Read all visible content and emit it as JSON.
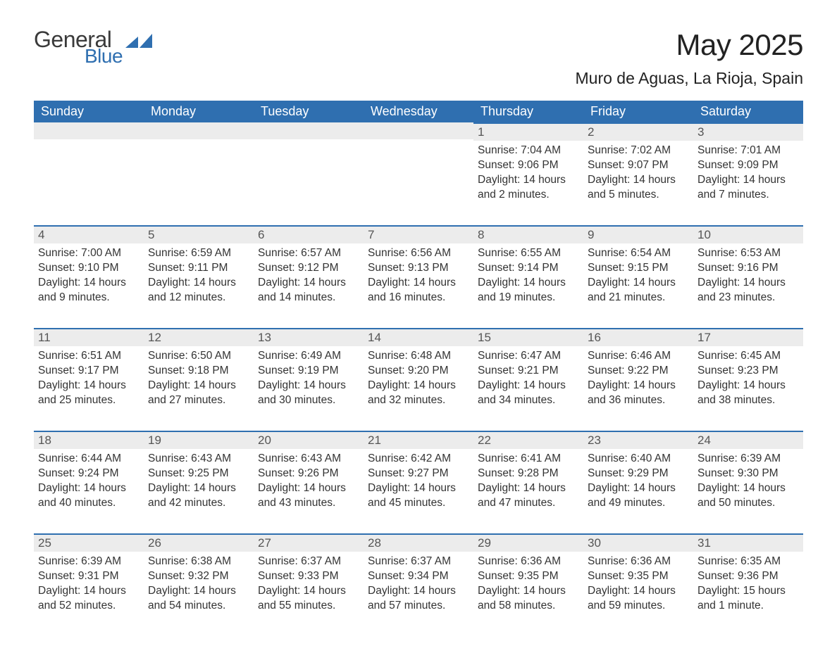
{
  "logo": {
    "text_general": "General",
    "text_blue": "Blue",
    "mark_color": "#2f6fb0"
  },
  "title": "May 2025",
  "location": "Muro de Aguas, La Rioja, Spain",
  "colors": {
    "header_bg": "#2f6fb0",
    "header_text": "#ffffff",
    "daynum_bg": "#ececec",
    "daynum_border": "#2f6fb0",
    "body_text": "#333333",
    "page_bg": "#ffffff"
  },
  "weekdays": [
    "Sunday",
    "Monday",
    "Tuesday",
    "Wednesday",
    "Thursday",
    "Friday",
    "Saturday"
  ],
  "weeks": [
    [
      null,
      null,
      null,
      null,
      {
        "day": "1",
        "sunrise": "Sunrise: 7:04 AM",
        "sunset": "Sunset: 9:06 PM",
        "daylight1": "Daylight: 14 hours",
        "daylight2": "and 2 minutes."
      },
      {
        "day": "2",
        "sunrise": "Sunrise: 7:02 AM",
        "sunset": "Sunset: 9:07 PM",
        "daylight1": "Daylight: 14 hours",
        "daylight2": "and 5 minutes."
      },
      {
        "day": "3",
        "sunrise": "Sunrise: 7:01 AM",
        "sunset": "Sunset: 9:09 PM",
        "daylight1": "Daylight: 14 hours",
        "daylight2": "and 7 minutes."
      }
    ],
    [
      {
        "day": "4",
        "sunrise": "Sunrise: 7:00 AM",
        "sunset": "Sunset: 9:10 PM",
        "daylight1": "Daylight: 14 hours",
        "daylight2": "and 9 minutes."
      },
      {
        "day": "5",
        "sunrise": "Sunrise: 6:59 AM",
        "sunset": "Sunset: 9:11 PM",
        "daylight1": "Daylight: 14 hours",
        "daylight2": "and 12 minutes."
      },
      {
        "day": "6",
        "sunrise": "Sunrise: 6:57 AM",
        "sunset": "Sunset: 9:12 PM",
        "daylight1": "Daylight: 14 hours",
        "daylight2": "and 14 minutes."
      },
      {
        "day": "7",
        "sunrise": "Sunrise: 6:56 AM",
        "sunset": "Sunset: 9:13 PM",
        "daylight1": "Daylight: 14 hours",
        "daylight2": "and 16 minutes."
      },
      {
        "day": "8",
        "sunrise": "Sunrise: 6:55 AM",
        "sunset": "Sunset: 9:14 PM",
        "daylight1": "Daylight: 14 hours",
        "daylight2": "and 19 minutes."
      },
      {
        "day": "9",
        "sunrise": "Sunrise: 6:54 AM",
        "sunset": "Sunset: 9:15 PM",
        "daylight1": "Daylight: 14 hours",
        "daylight2": "and 21 minutes."
      },
      {
        "day": "10",
        "sunrise": "Sunrise: 6:53 AM",
        "sunset": "Sunset: 9:16 PM",
        "daylight1": "Daylight: 14 hours",
        "daylight2": "and 23 minutes."
      }
    ],
    [
      {
        "day": "11",
        "sunrise": "Sunrise: 6:51 AM",
        "sunset": "Sunset: 9:17 PM",
        "daylight1": "Daylight: 14 hours",
        "daylight2": "and 25 minutes."
      },
      {
        "day": "12",
        "sunrise": "Sunrise: 6:50 AM",
        "sunset": "Sunset: 9:18 PM",
        "daylight1": "Daylight: 14 hours",
        "daylight2": "and 27 minutes."
      },
      {
        "day": "13",
        "sunrise": "Sunrise: 6:49 AM",
        "sunset": "Sunset: 9:19 PM",
        "daylight1": "Daylight: 14 hours",
        "daylight2": "and 30 minutes."
      },
      {
        "day": "14",
        "sunrise": "Sunrise: 6:48 AM",
        "sunset": "Sunset: 9:20 PM",
        "daylight1": "Daylight: 14 hours",
        "daylight2": "and 32 minutes."
      },
      {
        "day": "15",
        "sunrise": "Sunrise: 6:47 AM",
        "sunset": "Sunset: 9:21 PM",
        "daylight1": "Daylight: 14 hours",
        "daylight2": "and 34 minutes."
      },
      {
        "day": "16",
        "sunrise": "Sunrise: 6:46 AM",
        "sunset": "Sunset: 9:22 PM",
        "daylight1": "Daylight: 14 hours",
        "daylight2": "and 36 minutes."
      },
      {
        "day": "17",
        "sunrise": "Sunrise: 6:45 AM",
        "sunset": "Sunset: 9:23 PM",
        "daylight1": "Daylight: 14 hours",
        "daylight2": "and 38 minutes."
      }
    ],
    [
      {
        "day": "18",
        "sunrise": "Sunrise: 6:44 AM",
        "sunset": "Sunset: 9:24 PM",
        "daylight1": "Daylight: 14 hours",
        "daylight2": "and 40 minutes."
      },
      {
        "day": "19",
        "sunrise": "Sunrise: 6:43 AM",
        "sunset": "Sunset: 9:25 PM",
        "daylight1": "Daylight: 14 hours",
        "daylight2": "and 42 minutes."
      },
      {
        "day": "20",
        "sunrise": "Sunrise: 6:43 AM",
        "sunset": "Sunset: 9:26 PM",
        "daylight1": "Daylight: 14 hours",
        "daylight2": "and 43 minutes."
      },
      {
        "day": "21",
        "sunrise": "Sunrise: 6:42 AM",
        "sunset": "Sunset: 9:27 PM",
        "daylight1": "Daylight: 14 hours",
        "daylight2": "and 45 minutes."
      },
      {
        "day": "22",
        "sunrise": "Sunrise: 6:41 AM",
        "sunset": "Sunset: 9:28 PM",
        "daylight1": "Daylight: 14 hours",
        "daylight2": "and 47 minutes."
      },
      {
        "day": "23",
        "sunrise": "Sunrise: 6:40 AM",
        "sunset": "Sunset: 9:29 PM",
        "daylight1": "Daylight: 14 hours",
        "daylight2": "and 49 minutes."
      },
      {
        "day": "24",
        "sunrise": "Sunrise: 6:39 AM",
        "sunset": "Sunset: 9:30 PM",
        "daylight1": "Daylight: 14 hours",
        "daylight2": "and 50 minutes."
      }
    ],
    [
      {
        "day": "25",
        "sunrise": "Sunrise: 6:39 AM",
        "sunset": "Sunset: 9:31 PM",
        "daylight1": "Daylight: 14 hours",
        "daylight2": "and 52 minutes."
      },
      {
        "day": "26",
        "sunrise": "Sunrise: 6:38 AM",
        "sunset": "Sunset: 9:32 PM",
        "daylight1": "Daylight: 14 hours",
        "daylight2": "and 54 minutes."
      },
      {
        "day": "27",
        "sunrise": "Sunrise: 6:37 AM",
        "sunset": "Sunset: 9:33 PM",
        "daylight1": "Daylight: 14 hours",
        "daylight2": "and 55 minutes."
      },
      {
        "day": "28",
        "sunrise": "Sunrise: 6:37 AM",
        "sunset": "Sunset: 9:34 PM",
        "daylight1": "Daylight: 14 hours",
        "daylight2": "and 57 minutes."
      },
      {
        "day": "29",
        "sunrise": "Sunrise: 6:36 AM",
        "sunset": "Sunset: 9:35 PM",
        "daylight1": "Daylight: 14 hours",
        "daylight2": "and 58 minutes."
      },
      {
        "day": "30",
        "sunrise": "Sunrise: 6:36 AM",
        "sunset": "Sunset: 9:35 PM",
        "daylight1": "Daylight: 14 hours",
        "daylight2": "and 59 minutes."
      },
      {
        "day": "31",
        "sunrise": "Sunrise: 6:35 AM",
        "sunset": "Sunset: 9:36 PM",
        "daylight1": "Daylight: 15 hours",
        "daylight2": "and 1 minute."
      }
    ]
  ]
}
